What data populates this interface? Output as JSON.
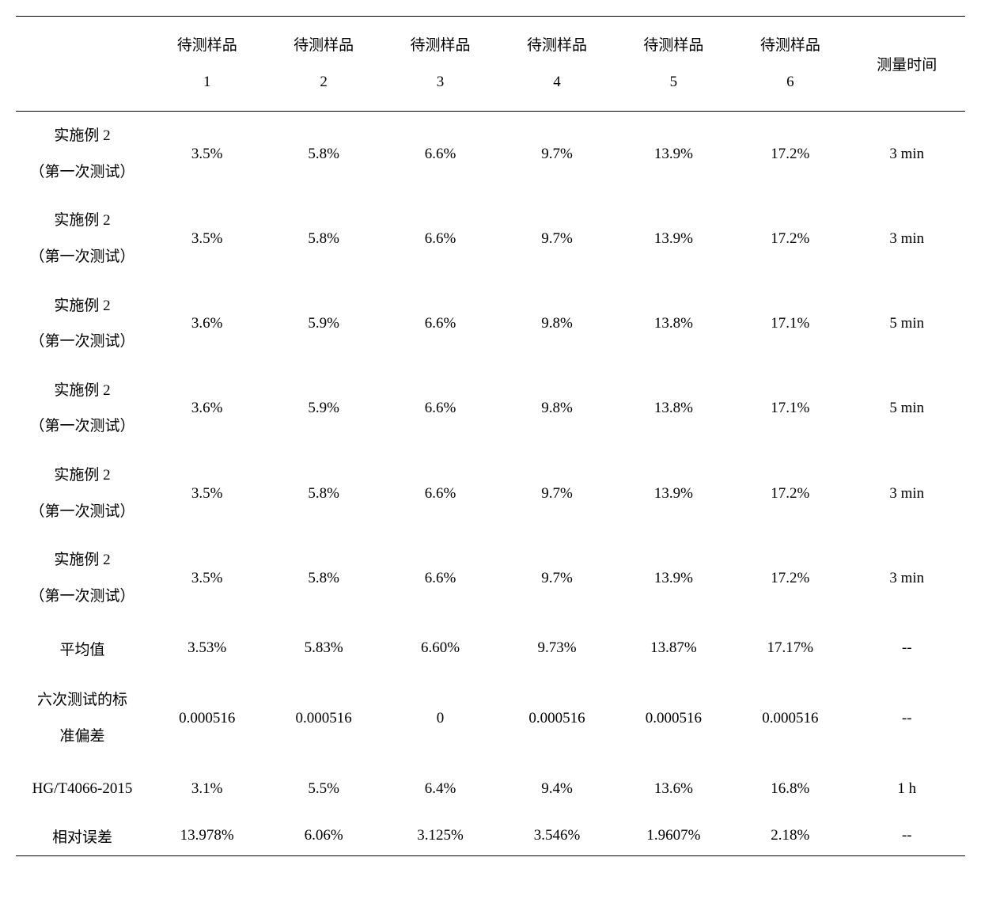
{
  "table": {
    "type": "table",
    "background_color": "#ffffff",
    "text_color": "#000000",
    "border_color": "#000000",
    "font_size": 19,
    "row_header_width": 168,
    "columns": {
      "sample_prefix": "待测样品",
      "sample_numbers": [
        "1",
        "2",
        "3",
        "4",
        "5",
        "6"
      ],
      "time_header": "测量时间"
    },
    "rows": [
      {
        "label_line1": "实施例 2",
        "label_line2": "（第一次测试）",
        "cells": [
          "3.5%",
          "5.8%",
          "6.6%",
          "9.7%",
          "13.9%",
          "17.2%"
        ],
        "time": "3 min"
      },
      {
        "label_line1": "实施例 2",
        "label_line2": "（第一次测试）",
        "cells": [
          "3.5%",
          "5.8%",
          "6.6%",
          "9.7%",
          "13.9%",
          "17.2%"
        ],
        "time": "3 min"
      },
      {
        "label_line1": "实施例 2",
        "label_line2": "（第一次测试）",
        "cells": [
          "3.6%",
          "5.9%",
          "6.6%",
          "9.8%",
          "13.8%",
          "17.1%"
        ],
        "time": "5 min"
      },
      {
        "label_line1": "实施例 2",
        "label_line2": "（第一次测试）",
        "cells": [
          "3.6%",
          "5.9%",
          "6.6%",
          "9.8%",
          "13.8%",
          "17.1%"
        ],
        "time": "5 min"
      },
      {
        "label_line1": "实施例 2",
        "label_line2": "（第一次测试）",
        "cells": [
          "3.5%",
          "5.8%",
          "6.6%",
          "9.7%",
          "13.9%",
          "17.2%"
        ],
        "time": "3 min"
      },
      {
        "label_line1": "实施例 2",
        "label_line2": "（第一次测试）",
        "cells": [
          "3.5%",
          "5.8%",
          "6.6%",
          "9.7%",
          "13.9%",
          "17.2%"
        ],
        "time": "3 min"
      }
    ],
    "average_row": {
      "label": "平均值",
      "cells": [
        "3.53%",
        "5.83%",
        "6.60%",
        "9.73%",
        "13.87%",
        "17.17%"
      ],
      "time": "--"
    },
    "std_row": {
      "label_line1": "六次测试的标",
      "label_line2": "准偏差",
      "cells": [
        "0.000516",
        "0.000516",
        "0",
        "0.000516",
        "0.000516",
        "0.000516"
      ],
      "time": "--"
    },
    "hg_row": {
      "label": "HG/T4066-2015",
      "cells": [
        "3.1%",
        "5.5%",
        "6.4%",
        "9.4%",
        "13.6%",
        "16.8%"
      ],
      "time": "1 h"
    },
    "error_row": {
      "label": "相对误差",
      "cells": [
        "13.978%",
        "6.06%",
        "3.125%",
        "3.546%",
        "1.9607%",
        "2.18%"
      ],
      "time": "--"
    }
  }
}
